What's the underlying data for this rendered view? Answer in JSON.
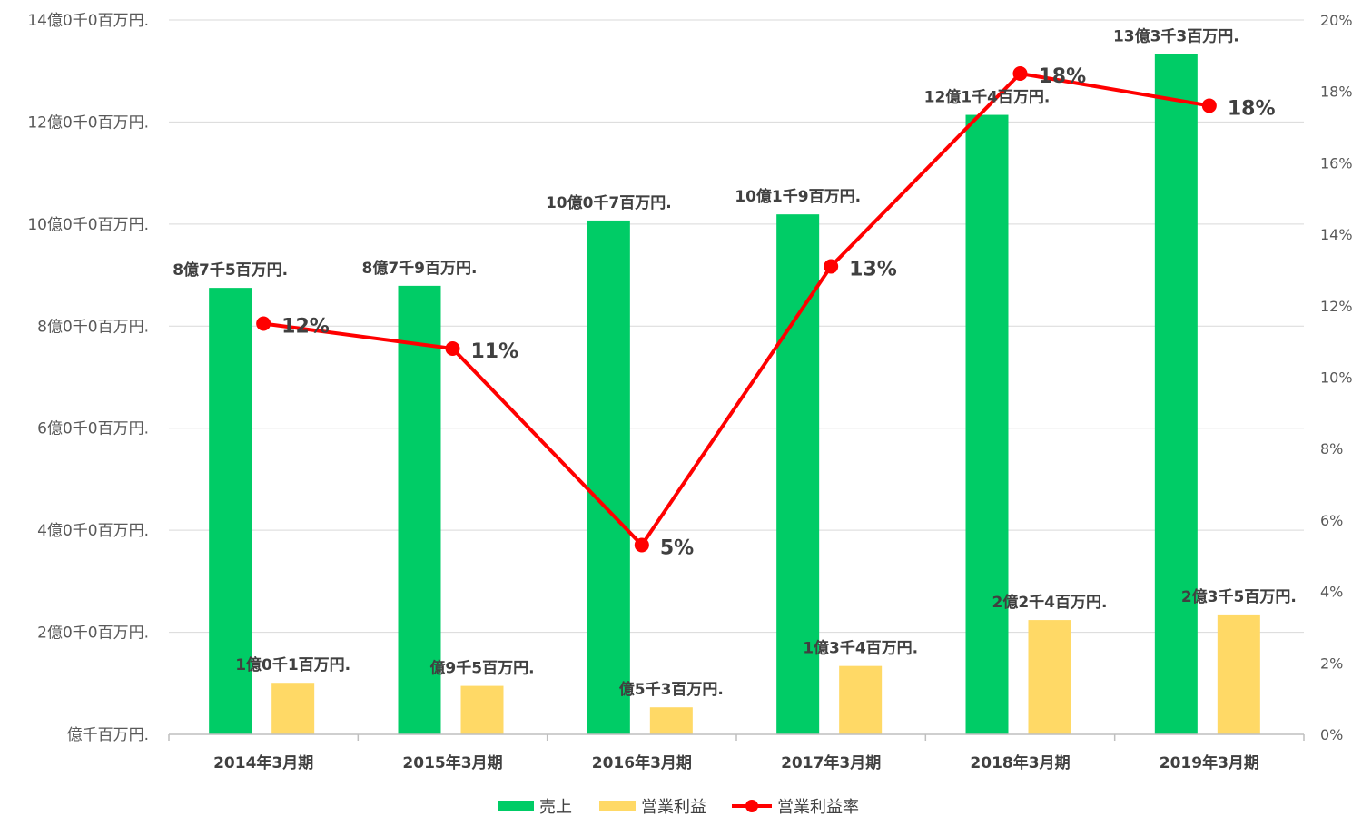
{
  "chart_data": {
    "type": "bar",
    "categories": [
      "2014年3月期",
      "2015年3月期",
      "2016年3月期",
      "2017年3月期",
      "2018年3月期",
      "2019年3月期"
    ],
    "series": [
      {
        "name": "売上",
        "type": "bar",
        "axis": "left",
        "color": "#00CC66",
        "values": [
          875,
          879,
          1007,
          1019,
          1214,
          1333
        ],
        "labels": [
          "8億7千5百万円.",
          "8億7千9百万円.",
          "10億0千7百万円.",
          "10億1千9百万円.",
          "12億1千4百万円.",
          "13億3千3百万円."
        ]
      },
      {
        "name": "営業利益",
        "type": "bar",
        "axis": "left",
        "color": "#FFD966",
        "values": [
          101,
          95,
          53,
          134,
          224,
          235
        ],
        "labels": [
          "1億0千1百万円.",
          "億9千5百万円.",
          "億5千3百万円.",
          "1億3千4百万円.",
          "2億2千4百万円.",
          "2億3千5百万円."
        ]
      },
      {
        "name": "営業利益率",
        "type": "line",
        "axis": "right",
        "color": "#FF0000",
        "values": [
          11.5,
          10.8,
          5.3,
          13.1,
          18.5,
          17.6
        ],
        "labels": [
          "12%",
          "11%",
          "5%",
          "13%",
          "18%",
          "18%"
        ]
      }
    ],
    "y_left": {
      "min": 0,
      "max": 1400,
      "step": 200,
      "ticks": [
        "億千百万円.",
        "2億0千0百万円.",
        "4億0千0百万円.",
        "6億0千0百万円.",
        "8億0千0百万円.",
        "10億0千0百万円.",
        "12億0千0百万円.",
        "14億0千0百万円."
      ]
    },
    "y_right": {
      "min": 0,
      "max": 20,
      "step": 2,
      "ticks": [
        "0%",
        "2%",
        "4%",
        "6%",
        "8%",
        "10%",
        "12%",
        "14%",
        "16%",
        "18%",
        "20%"
      ]
    },
    "grid": true,
    "legend_position": "bottom-center",
    "title": "",
    "xlabel": "",
    "ylabel": ""
  }
}
